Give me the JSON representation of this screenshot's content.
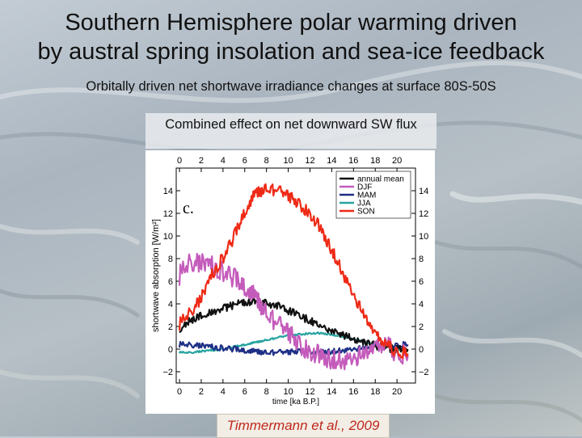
{
  "slide": {
    "title_line1": "Southern Hemisphere polar warming driven",
    "title_line2": "by austral spring insolation and sea-ice feedback",
    "subtitle": "Orbitally driven net shortwave irradiance changes  at surface 80S-50S",
    "panel_caption": "Combined effect on net downward SW flux",
    "citation": "Timmermann et al., 2009"
  },
  "chart_data": {
    "type": "line",
    "panel_label": "c.",
    "title": "",
    "xlabel": "time [ka B.P.]",
    "ylabel": "shortwave absorption [W/m²]",
    "xlim": [
      -0.3,
      21.7
    ],
    "ylim": [
      -3,
      16
    ],
    "xticks": [
      0,
      2,
      4,
      6,
      8,
      10,
      12,
      14,
      16,
      18,
      20
    ],
    "yticks": [
      -2,
      0,
      2,
      4,
      6,
      8,
      10,
      12,
      14
    ],
    "legend_position": "top-right",
    "colors": {
      "annual mean": "#111111",
      "DJF": "#c45bbb",
      "MAM": "#1e2f86",
      "JJA": "#27a3a0",
      "SON": "#ee2a16"
    },
    "series": [
      {
        "name": "annual mean",
        "x": [
          0,
          1,
          2,
          3,
          4,
          5,
          6,
          7,
          8,
          9,
          10,
          11,
          12,
          13,
          14,
          15,
          16,
          17,
          18,
          19,
          20,
          21
        ],
        "values": [
          1.8,
          2.5,
          3.0,
          3.2,
          3.6,
          3.9,
          4.1,
          4.3,
          4.1,
          3.8,
          3.4,
          3.0,
          2.5,
          2.0,
          1.6,
          1.2,
          0.9,
          0.6,
          0.3,
          0.1,
          0.0,
          -0.1
        ]
      },
      {
        "name": "DJF",
        "x": [
          0,
          1,
          2,
          3,
          4,
          5,
          6,
          7,
          8,
          9,
          10,
          11,
          12,
          13,
          14,
          15,
          16,
          17,
          18,
          19,
          20,
          21
        ],
        "values": [
          6.5,
          7.8,
          7.6,
          7.4,
          6.9,
          6.3,
          5.6,
          4.6,
          3.2,
          2.2,
          1.4,
          0.4,
          -0.2,
          -0.6,
          -0.9,
          -1.0,
          -0.8,
          -0.5,
          0.0,
          0.3,
          -0.3,
          -0.6
        ]
      },
      {
        "name": "MAM",
        "x": [
          0,
          1,
          2,
          3,
          4,
          5,
          6,
          7,
          8,
          9,
          10,
          11,
          12,
          13,
          14,
          15,
          16,
          17,
          18,
          19,
          20,
          21
        ],
        "values": [
          0.4,
          0.4,
          0.3,
          0.2,
          0.1,
          0.0,
          -0.1,
          -0.2,
          -0.3,
          -0.3,
          -0.3,
          -0.2,
          -0.2,
          -0.2,
          -0.2,
          -0.1,
          0.0,
          0.1,
          0.2,
          0.3,
          0.4,
          0.4
        ]
      },
      {
        "name": "JJA",
        "x": [
          0,
          1,
          2,
          3,
          4,
          5,
          6,
          7,
          8,
          9,
          10,
          11,
          12,
          13,
          14,
          15,
          16,
          17,
          18,
          19,
          20,
          21
        ],
        "values": [
          -0.3,
          -0.3,
          -0.2,
          -0.1,
          0.0,
          0.2,
          0.4,
          0.6,
          0.8,
          1.0,
          1.2,
          1.3,
          1.4,
          1.4,
          1.3,
          1.1,
          0.9,
          0.6,
          0.4,
          0.2,
          0.0,
          -0.1
        ]
      },
      {
        "name": "SON",
        "x": [
          0,
          1,
          2,
          3,
          4,
          5,
          6,
          7,
          8,
          9,
          10,
          11,
          12,
          13,
          14,
          15,
          16,
          17,
          18,
          19,
          20,
          21
        ],
        "values": [
          2.2,
          3.3,
          4.5,
          6.6,
          8.1,
          9.9,
          12.2,
          13.8,
          14.2,
          14.0,
          13.5,
          12.8,
          12.0,
          10.6,
          8.8,
          6.8,
          4.8,
          2.9,
          1.2,
          0.3,
          -0.2,
          -0.4
        ]
      }
    ]
  }
}
